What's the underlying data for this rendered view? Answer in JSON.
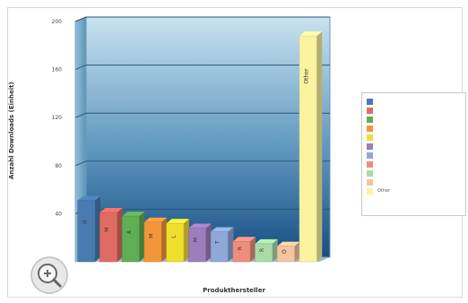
{
  "chart_data": {
    "type": "bar",
    "title": "",
    "xlabel": "Produkthersteller",
    "ylabel": "Anzahl Downloads (Einheit)",
    "ylim": [
      0,
      200
    ],
    "yticks": [
      "200",
      "160",
      "120",
      "80",
      "40"
    ],
    "grid": true,
    "legend_position": "right",
    "categories": [
      "H",
      "M",
      "A",
      "M",
      "L",
      "M",
      "T",
      "R",
      "R",
      "O",
      "Other"
    ],
    "values": [
      51,
      41,
      38,
      33,
      32,
      28,
      25,
      17,
      15,
      13,
      188
    ],
    "series_colors": [
      "#4a7bb0",
      "#e06b62",
      "#5fae54",
      "#f2963c",
      "#f0de2f",
      "#9d7dbb",
      "#8ea8d8",
      "#ed8d7e",
      "#a8dba6",
      "#f6c49e",
      "#fbf3a0"
    ],
    "legend_entries": [
      "",
      "",
      "",
      "",
      "",
      "",
      "",
      "",
      "",
      "",
      "Other"
    ]
  },
  "zoom": {
    "icon": "zoom-in-icon"
  }
}
